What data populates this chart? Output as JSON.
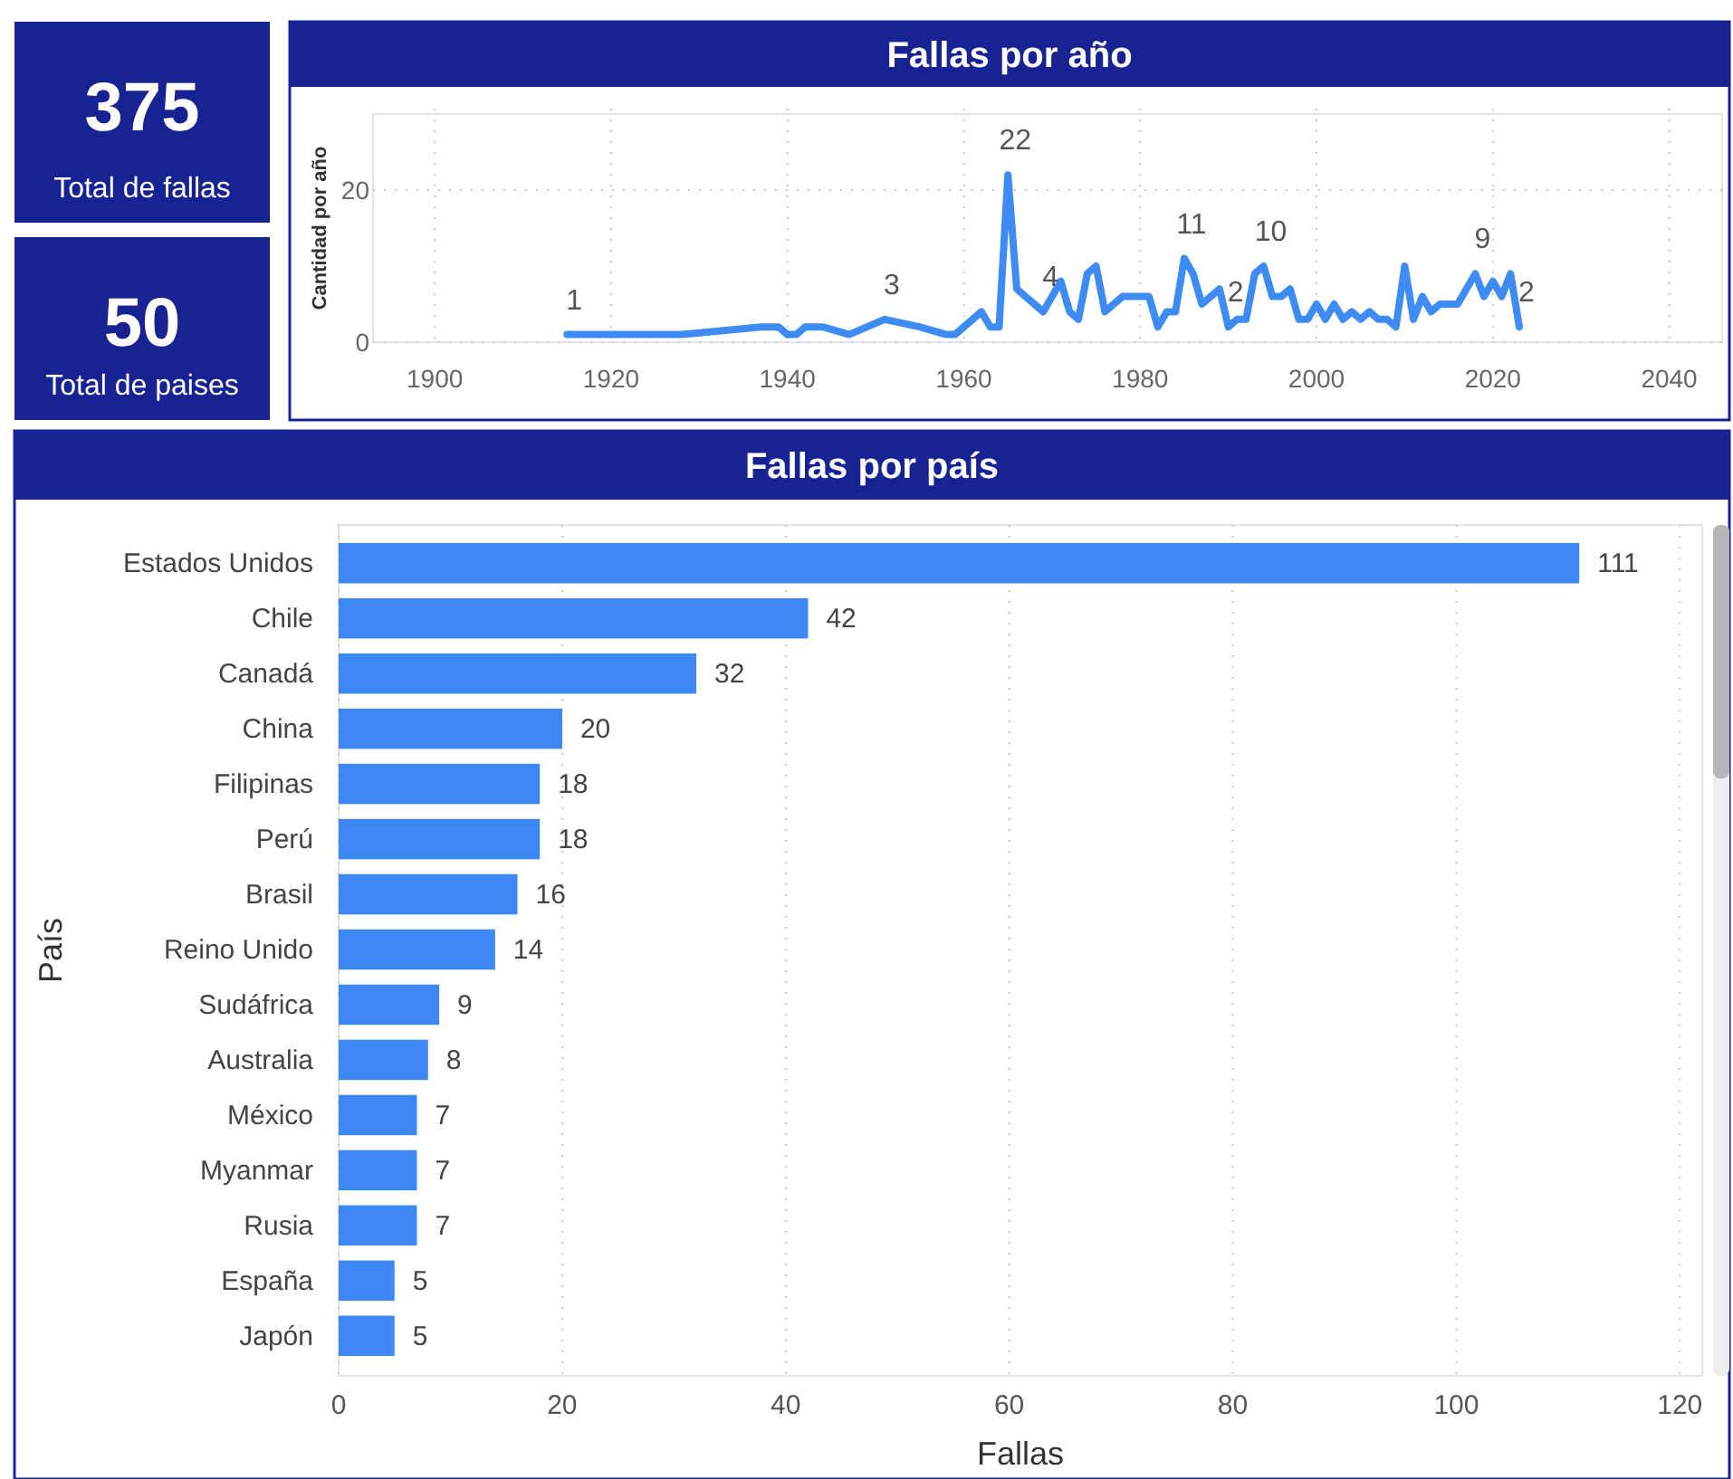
{
  "chart_data": [
    {
      "type": "other",
      "annotations": [
        "375",
        "Total de fallas"
      ],
      "color": "#172293"
    },
    {
      "type": "line",
      "title": "Fallas por año",
      "ylabel": "Cantidad por año",
      "xlim": [
        1893,
        2046
      ],
      "xticks": [
        1900,
        1920,
        1940,
        1960,
        1980,
        2000,
        2020,
        2040
      ],
      "ylim": [
        0,
        30
      ],
      "yticks": [
        0,
        20
      ],
      "grid": true,
      "line_style": "solid",
      "series": [
        {
          "color": "#3d8bf3",
          "x": [
            1915,
            1928,
            1937,
            1939,
            1940,
            1941,
            1942,
            1944,
            1947,
            1951,
            1955,
            1958,
            1959,
            1962,
            1963,
            1964,
            1965,
            1966,
            1969,
            1971,
            1972,
            1973,
            1974,
            1975,
            1976,
            1977,
            1978,
            1979,
            1980,
            1981,
            1982,
            1983,
            1984,
            1985,
            1986,
            1987,
            1988,
            1989,
            1990,
            1991,
            1992,
            1993,
            1994,
            1995,
            1996,
            1997,
            1998,
            1999,
            2000,
            2001,
            2002,
            2003,
            2004,
            2005,
            2006,
            2007,
            2008,
            2009,
            2010,
            2011,
            2012,
            2013,
            2014,
            2015,
            2016,
            2017,
            2018,
            2019,
            2020,
            2021,
            2022,
            2023
          ],
          "values": [
            1,
            1,
            2,
            2,
            1,
            1,
            2,
            2,
            1,
            3,
            2,
            1,
            1,
            4,
            2,
            2,
            22,
            7,
            4,
            8,
            4,
            3,
            9,
            10,
            4,
            5,
            6,
            6,
            6,
            6,
            2,
            4,
            4,
            11,
            9,
            5,
            6,
            7,
            2,
            3,
            3,
            9,
            10,
            6,
            6,
            7,
            3,
            3,
            5,
            3,
            5,
            3,
            4,
            3,
            4,
            3,
            3,
            2,
            10,
            3,
            6,
            4,
            5,
            5,
            5,
            7,
            9,
            6,
            8,
            6,
            9,
            2
          ],
          "value_labels": [
            "1",
            null,
            null,
            null,
            null,
            null,
            null,
            null,
            null,
            "3",
            null,
            null,
            null,
            null,
            null,
            null,
            "22",
            null,
            "4",
            null,
            null,
            null,
            null,
            null,
            null,
            null,
            null,
            null,
            null,
            null,
            null,
            null,
            null,
            "11",
            null,
            null,
            null,
            null,
            "2",
            null,
            null,
            null,
            "10",
            null,
            null,
            null,
            null,
            null,
            null,
            null,
            null,
            null,
            null,
            null,
            null,
            null,
            null,
            null,
            null,
            null,
            null,
            null,
            null,
            null,
            null,
            null,
            "9",
            null,
            null,
            null,
            null,
            "2"
          ]
        }
      ]
    },
    {
      "type": "other",
      "annotations": [
        "50",
        "Total de paises"
      ],
      "color": "#172293"
    },
    {
      "type": "bar",
      "orientation": "horizontal",
      "title": "Fallas por país",
      "xlabel": "Fallas",
      "ylabel": "País",
      "categories": [
        "Estados Unidos",
        "Chile",
        "Canadá",
        "China",
        "Filipinas",
        "Perú",
        "Brasil",
        "Reino Unido",
        "Sudáfrica",
        "Australia",
        "México",
        "Myanmar",
        "Rusia",
        "España",
        "Japón"
      ],
      "values": [
        111,
        42,
        32,
        20,
        18,
        18,
        16,
        14,
        9,
        8,
        7,
        7,
        7,
        5,
        5
      ],
      "color": "#3d87f2",
      "xlim": [
        0,
        122
      ],
      "xticks": [
        0,
        20,
        40,
        60,
        80,
        100,
        120
      ],
      "grid": "x",
      "data_labels": true
    }
  ]
}
